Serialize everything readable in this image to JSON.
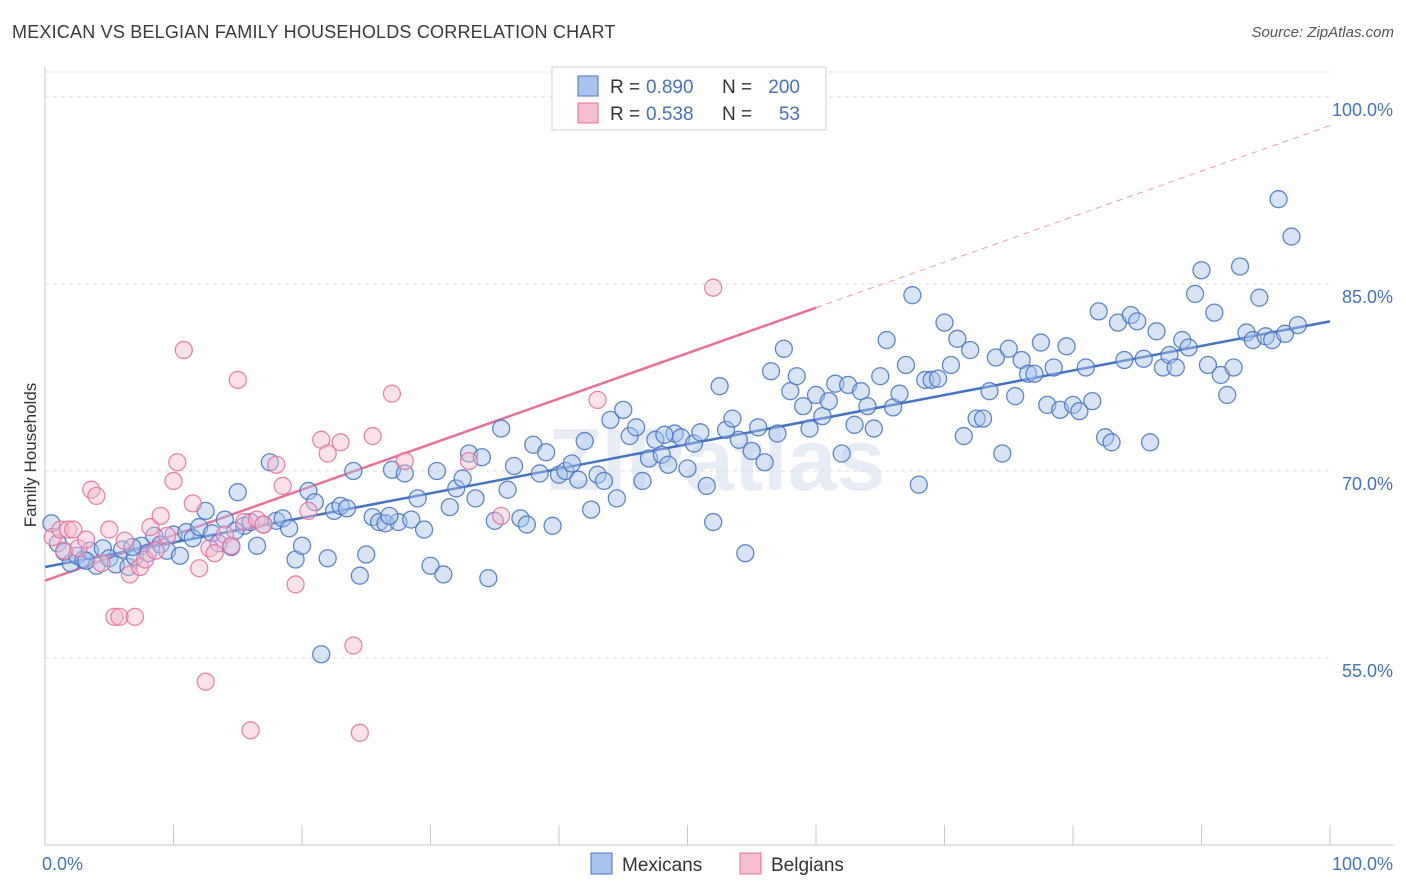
{
  "chart_data": {
    "type": "scatter",
    "title": "MEXICAN VS BELGIAN FAMILY HOUSEHOLDS CORRELATION CHART",
    "source": "Source: ZipAtlas.com",
    "xlabel": "",
    "ylabel": "Family Households",
    "x_tick_labels": [
      "0.0%",
      "100.0%"
    ],
    "y_tick_labels": [
      "55.0%",
      "70.0%",
      "85.0%",
      "100.0%"
    ],
    "y_ticks": [
      55,
      70,
      85,
      100
    ],
    "xlim": [
      0,
      100
    ],
    "ylim": [
      40,
      102
    ],
    "grid": true,
    "watermark": "ZIPatlas",
    "legend": {
      "entries": [
        {
          "series": "Mexicans",
          "r_label": "R = ",
          "r_value": "0.890",
          "n_label": "N = ",
          "n_value": "200",
          "color": "#4472c4"
        },
        {
          "series": "Belgians",
          "r_label": "R = ",
          "r_value": "0.538",
          "n_label": "N = ",
          "n_value": "53",
          "color": "#e8709a"
        }
      ]
    },
    "series": [
      {
        "name": "Mexicans",
        "color": "#4472c4",
        "fill": "#a9c4ec",
        "trend": {
          "x0": 0,
          "y0": 62.3,
          "x1": 100,
          "y1": 82.0
        },
        "points": [
          [
            0.5,
            65.8
          ],
          [
            1,
            64.2
          ],
          [
            1.5,
            63.5
          ],
          [
            2,
            62.6
          ],
          [
            2.5,
            63.2
          ],
          [
            3,
            62.9
          ],
          [
            3.5,
            63.6
          ],
          [
            4,
            62.4
          ],
          [
            4.5,
            63.8
          ],
          [
            5,
            63.0
          ],
          [
            5.5,
            62.5
          ],
          [
            6,
            63.7
          ],
          [
            6.5,
            62.3
          ],
          [
            7,
            63.1
          ],
          [
            7.5,
            64.0
          ],
          [
            8,
            63.4
          ],
          [
            8.5,
            64.8
          ],
          [
            9,
            64.1
          ],
          [
            9.5,
            63.6
          ],
          [
            10,
            64.9
          ],
          [
            10.5,
            63.2
          ],
          [
            11,
            65.1
          ],
          [
            11.5,
            64.6
          ],
          [
            12,
            65.5
          ],
          [
            12.5,
            66.8
          ],
          [
            13,
            65.0
          ],
          [
            13.5,
            64.2
          ],
          [
            14,
            66.1
          ],
          [
            14.5,
            63.9
          ],
          [
            15,
            68.3
          ],
          [
            15.5,
            65.6
          ],
          [
            16,
            65.9
          ],
          [
            16.5,
            64.0
          ],
          [
            17,
            65.7
          ],
          [
            17.5,
            70.7
          ],
          [
            18,
            66.0
          ],
          [
            18.5,
            66.2
          ],
          [
            19,
            65.4
          ],
          [
            19.5,
            62.9
          ],
          [
            20,
            64.0
          ],
          [
            20.5,
            68.4
          ],
          [
            21,
            67.5
          ],
          [
            21.5,
            55.3
          ],
          [
            22,
            63.0
          ],
          [
            22.5,
            66.8
          ],
          [
            23,
            67.2
          ],
          [
            23.5,
            67.0
          ],
          [
            24,
            70.0
          ],
          [
            24.5,
            61.6
          ],
          [
            25,
            63.3
          ],
          [
            25.5,
            66.3
          ],
          [
            26,
            65.9
          ],
          [
            26.5,
            65.8
          ],
          [
            27,
            70.1
          ],
          [
            27.5,
            65.9
          ],
          [
            28,
            69.8
          ],
          [
            28.5,
            66.1
          ],
          [
            29,
            67.8
          ],
          [
            29.5,
            65.3
          ],
          [
            30,
            62.4
          ],
          [
            30.5,
            70.0
          ],
          [
            31,
            61.7
          ],
          [
            31.5,
            67.1
          ],
          [
            32,
            68.6
          ],
          [
            32.5,
            69.4
          ],
          [
            33,
            71.4
          ],
          [
            33.5,
            67.8
          ],
          [
            34,
            71.1
          ],
          [
            34.5,
            61.4
          ],
          [
            35,
            66.0
          ],
          [
            35.5,
            73.4
          ],
          [
            36,
            68.5
          ],
          [
            36.5,
            70.4
          ],
          [
            37,
            66.2
          ],
          [
            37.5,
            65.7
          ],
          [
            38,
            72.1
          ],
          [
            38.5,
            69.8
          ],
          [
            39,
            71.5
          ],
          [
            39.5,
            65.6
          ],
          [
            40,
            69.7
          ],
          [
            40.5,
            70.0
          ],
          [
            41,
            70.6
          ],
          [
            41.5,
            69.3
          ],
          [
            42,
            72.4
          ],
          [
            42.5,
            66.9
          ],
          [
            43,
            69.7
          ],
          [
            43.5,
            69.2
          ],
          [
            44,
            74.1
          ],
          [
            44.5,
            67.8
          ],
          [
            45,
            74.9
          ],
          [
            45.5,
            72.8
          ],
          [
            46,
            73.5
          ],
          [
            46.5,
            69.2
          ],
          [
            47,
            71.0
          ],
          [
            47.5,
            72.5
          ],
          [
            48,
            71.3
          ],
          [
            48.5,
            70.5
          ],
          [
            49,
            73.0
          ],
          [
            49.5,
            72.7
          ],
          [
            50,
            70.2
          ],
          [
            50.5,
            72.2
          ],
          [
            51,
            73.1
          ],
          [
            51.5,
            68.8
          ],
          [
            52,
            65.9
          ],
          [
            52.5,
            76.8
          ],
          [
            53,
            73.3
          ],
          [
            53.5,
            74.2
          ],
          [
            54,
            72.5
          ],
          [
            54.5,
            63.4
          ],
          [
            55,
            71.6
          ],
          [
            55.5,
            73.5
          ],
          [
            56,
            70.7
          ],
          [
            56.5,
            78.0
          ],
          [
            57,
            73.0
          ],
          [
            57.5,
            79.8
          ],
          [
            58,
            76.4
          ],
          [
            58.5,
            77.6
          ],
          [
            59,
            75.2
          ],
          [
            59.5,
            73.4
          ],
          [
            60,
            76.1
          ],
          [
            60.5,
            74.4
          ],
          [
            61,
            75.6
          ],
          [
            61.5,
            77.0
          ],
          [
            62,
            71.4
          ],
          [
            62.5,
            76.9
          ],
          [
            63,
            73.7
          ],
          [
            63.5,
            76.4
          ],
          [
            64,
            75.2
          ],
          [
            64.5,
            73.4
          ],
          [
            65,
            77.6
          ],
          [
            65.5,
            80.5
          ],
          [
            66,
            75.1
          ],
          [
            66.5,
            76.2
          ],
          [
            67,
            78.5
          ],
          [
            67.5,
            84.1
          ],
          [
            68,
            68.9
          ],
          [
            68.5,
            77.3
          ],
          [
            69,
            77.3
          ],
          [
            69.5,
            77.4
          ],
          [
            70,
            81.9
          ],
          [
            70.5,
            78.5
          ],
          [
            71,
            80.6
          ],
          [
            71.5,
            72.8
          ],
          [
            72,
            79.7
          ],
          [
            72.5,
            74.2
          ],
          [
            73,
            74.2
          ],
          [
            73.5,
            76.4
          ],
          [
            74,
            79.1
          ],
          [
            74.5,
            71.4
          ],
          [
            75,
            79.8
          ],
          [
            75.5,
            76.0
          ],
          [
            76,
            78.9
          ],
          [
            76.5,
            77.8
          ],
          [
            77,
            77.8
          ],
          [
            77.5,
            80.3
          ],
          [
            78,
            75.3
          ],
          [
            78.5,
            78.3
          ],
          [
            79,
            74.9
          ],
          [
            79.5,
            80.0
          ],
          [
            80,
            75.3
          ],
          [
            80.5,
            74.8
          ],
          [
            81,
            78.3
          ],
          [
            81.5,
            75.6
          ],
          [
            82,
            82.8
          ],
          [
            82.5,
            72.7
          ],
          [
            83,
            72.3
          ],
          [
            83.5,
            81.9
          ],
          [
            84,
            78.9
          ],
          [
            84.5,
            82.5
          ],
          [
            85,
            82.0
          ],
          [
            85.5,
            79.0
          ],
          [
            86,
            72.3
          ],
          [
            86.5,
            81.2
          ],
          [
            87,
            78.3
          ],
          [
            87.5,
            79.3
          ],
          [
            88,
            78.3
          ],
          [
            88.5,
            80.5
          ],
          [
            89,
            79.9
          ],
          [
            89.5,
            84.2
          ],
          [
            90,
            86.1
          ],
          [
            90.5,
            78.5
          ],
          [
            91,
            82.7
          ],
          [
            91.5,
            77.7
          ],
          [
            92,
            76.1
          ],
          [
            92.5,
            78.3
          ],
          [
            93,
            86.4
          ],
          [
            93.5,
            81.1
          ],
          [
            94,
            80.5
          ],
          [
            94.5,
            83.9
          ],
          [
            95,
            80.8
          ],
          [
            95.5,
            80.5
          ],
          [
            96,
            91.8
          ],
          [
            96.5,
            81.0
          ],
          [
            97,
            88.8
          ],
          [
            97.5,
            81.7
          ],
          [
            3.2,
            62.8
          ],
          [
            6.8,
            63.9
          ],
          [
            14.8,
            65.2
          ],
          [
            26.8,
            66.4
          ],
          [
            48.2,
            72.9
          ]
        ]
      },
      {
        "name": "Belgians",
        "color": "#e8709a",
        "fill": "#f5bdd0",
        "trend": {
          "x0": 0,
          "y0": 61.2,
          "x1": 60,
          "y1": 83.1
        },
        "trend_ext": {
          "x0": 60,
          "y0": 83.1,
          "x1": 100,
          "y1": 97.7
        },
        "points": [
          [
            0.6,
            64.7
          ],
          [
            1.2,
            65.3
          ],
          [
            1.5,
            63.6
          ],
          [
            1.8,
            65.3
          ],
          [
            2.2,
            65.3
          ],
          [
            2.6,
            63.8
          ],
          [
            3.2,
            64.5
          ],
          [
            3.6,
            68.5
          ],
          [
            4.0,
            68.0
          ],
          [
            4.4,
            62.6
          ],
          [
            5.0,
            65.3
          ],
          [
            5.4,
            58.3
          ],
          [
            5.8,
            58.3
          ],
          [
            6.2,
            64.4
          ],
          [
            6.6,
            61.7
          ],
          [
            7.0,
            58.3
          ],
          [
            7.4,
            62.3
          ],
          [
            7.8,
            62.9
          ],
          [
            8.2,
            65.5
          ],
          [
            8.6,
            63.6
          ],
          [
            9.0,
            66.4
          ],
          [
            9.5,
            64.8
          ],
          [
            10.0,
            69.2
          ],
          [
            10.3,
            70.7
          ],
          [
            10.8,
            79.7
          ],
          [
            11.5,
            67.4
          ],
          [
            12.0,
            62.2
          ],
          [
            12.5,
            53.1
          ],
          [
            12.8,
            63.8
          ],
          [
            13.2,
            63.4
          ],
          [
            14.0,
            64.9
          ],
          [
            14.5,
            64.0
          ],
          [
            15.0,
            77.3
          ],
          [
            15.5,
            65.9
          ],
          [
            16.0,
            49.2
          ],
          [
            16.5,
            66.1
          ],
          [
            17.0,
            65.7
          ],
          [
            18.0,
            70.5
          ],
          [
            18.5,
            68.8
          ],
          [
            19.5,
            60.9
          ],
          [
            20.5,
            66.8
          ],
          [
            21.5,
            72.5
          ],
          [
            22.0,
            71.4
          ],
          [
            23.0,
            72.3
          ],
          [
            24.0,
            56.0
          ],
          [
            24.5,
            49.0
          ],
          [
            25.5,
            72.8
          ],
          [
            27.0,
            76.2
          ],
          [
            28.0,
            70.8
          ],
          [
            33.0,
            70.8
          ],
          [
            35.5,
            66.4
          ],
          [
            43.0,
            75.7
          ],
          [
            52.0,
            84.7
          ]
        ]
      }
    ]
  }
}
